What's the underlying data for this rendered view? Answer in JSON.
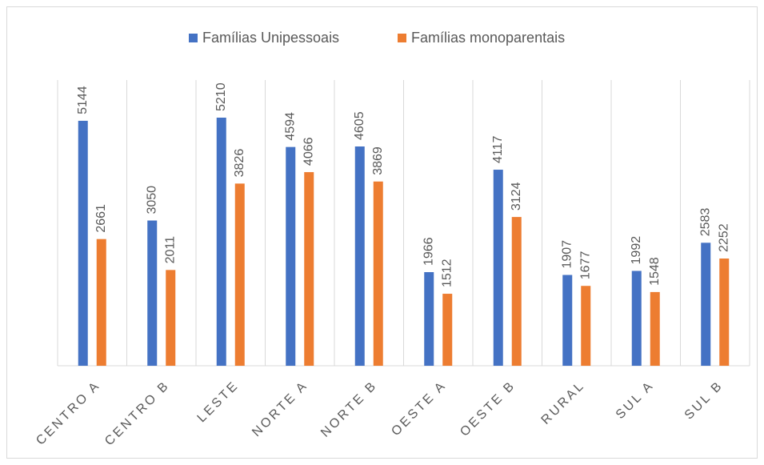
{
  "chart_data": {
    "type": "bar",
    "categories": [
      "CENTRO A",
      "CENTRO B",
      "LESTE",
      "NORTE A",
      "NORTE B",
      "OESTE A",
      "OESTE B",
      "RURAL",
      "SUL A",
      "SUL B"
    ],
    "series": [
      {
        "name": "Famílias Unipessoais",
        "color": "#4472c4",
        "values": [
          5144,
          3050,
          5210,
          4594,
          4605,
          1966,
          4117,
          1907,
          1992,
          2583
        ]
      },
      {
        "name": "Famílias monoparentais",
        "color": "#ed7d31",
        "values": [
          2661,
          2011,
          3826,
          4066,
          3869,
          1512,
          3124,
          1677,
          1548,
          2252
        ]
      }
    ],
    "ylim": [
      0,
      6000
    ],
    "legend": "top"
  }
}
